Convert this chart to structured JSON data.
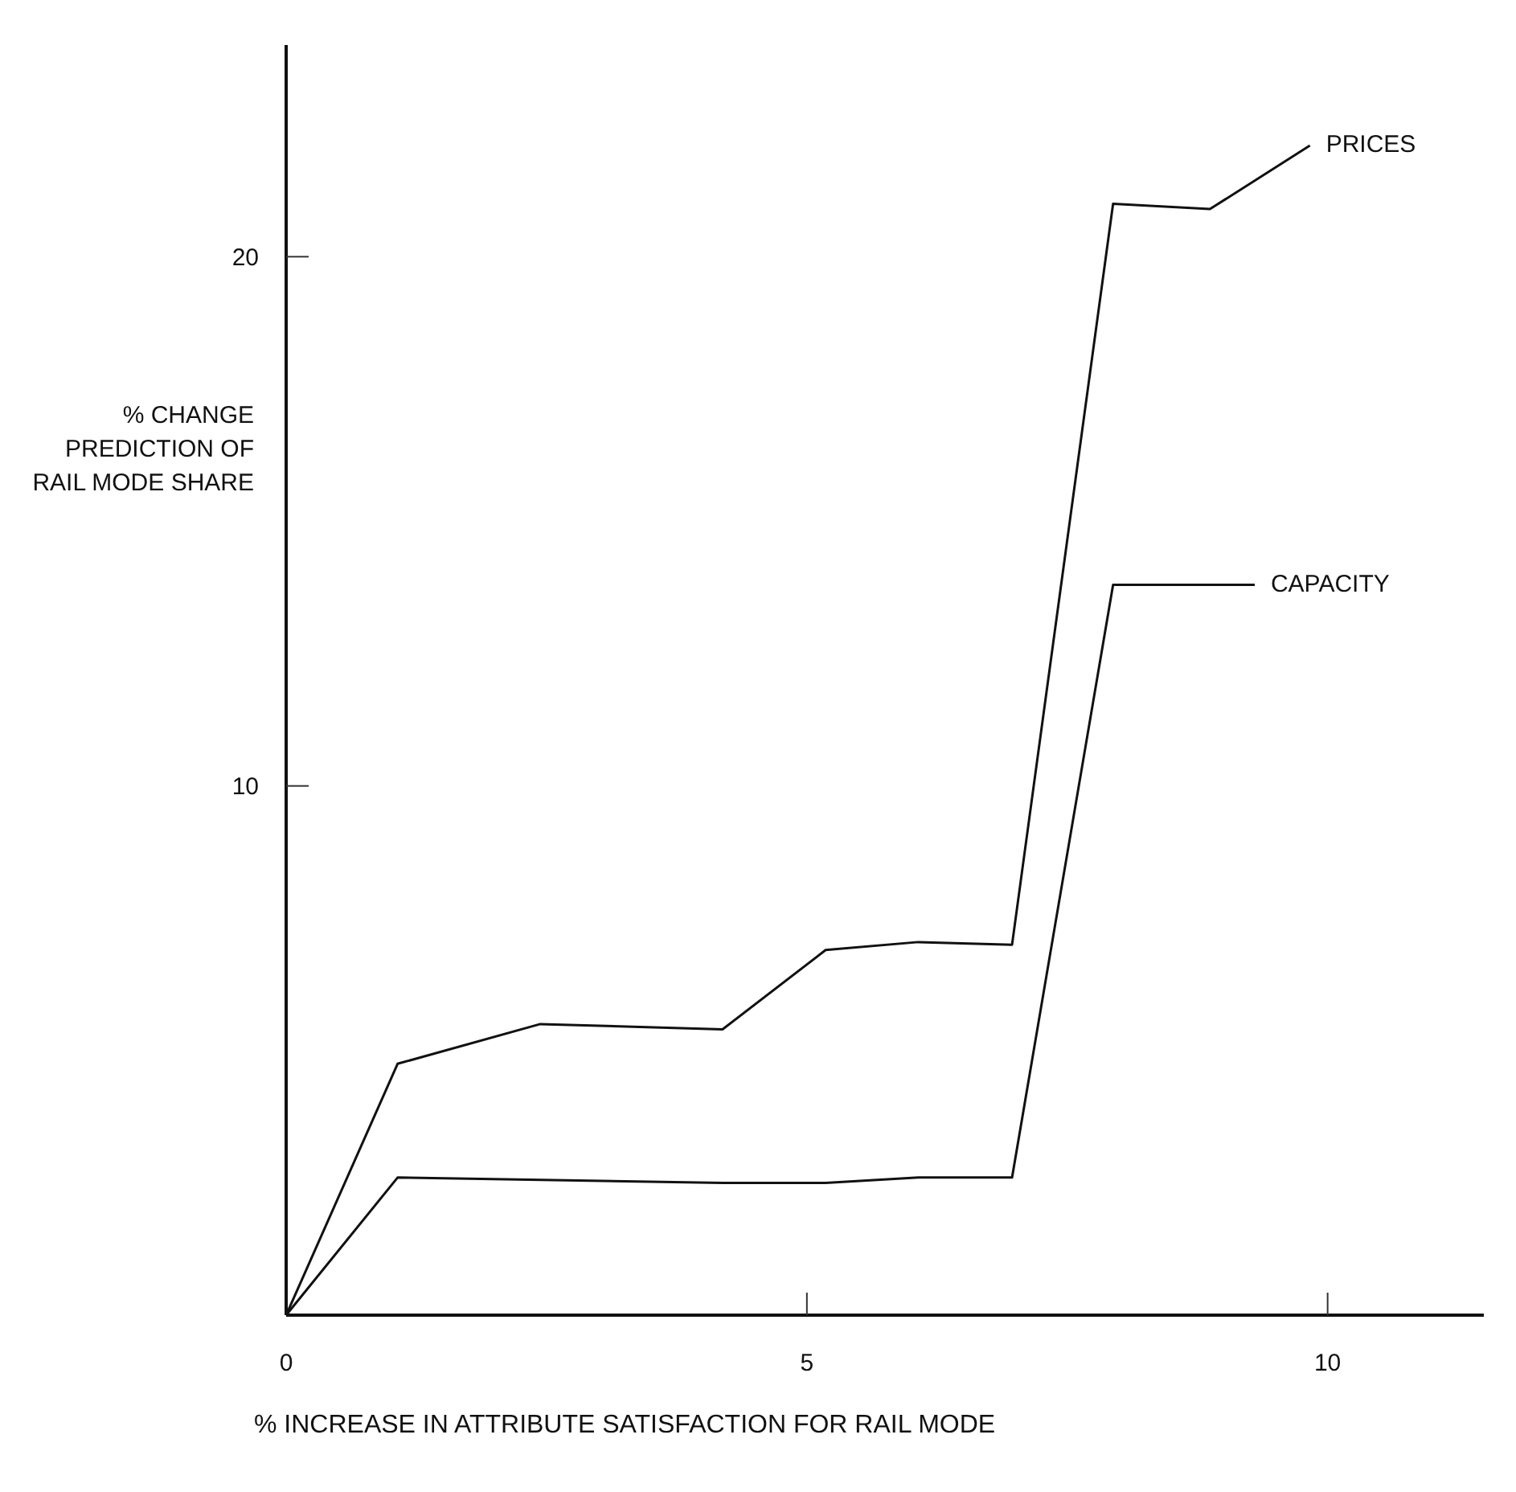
{
  "chart_data": {
    "type": "line",
    "xlabel": "% INCREASE IN ATTRIBUTE SATISFACTION FOR RAIL MODE",
    "ylabel": "% CHANGE PREDICTION OF RAIL MODE SHARE",
    "xlim": [
      0,
      11.5
    ],
    "xticks": [
      0,
      5,
      10
    ],
    "ylim": [
      0,
      24
    ],
    "yticks": [
      10,
      20
    ],
    "grid": false,
    "legend": false,
    "marker": "none",
    "line_style": "solid",
    "series": [
      {
        "name": "PRICES",
        "color": "#111111",
        "x": [
          0,
          1.07,
          2.44,
          4.19,
          5.18,
          6.07,
          6.97,
          7.94,
          8.87,
          9.83
        ],
        "values": [
          0,
          4.75,
          5.5,
          5.4,
          6.9,
          7.05,
          7.0,
          21.0,
          20.9,
          22.1
        ]
      },
      {
        "name": "CAPACITY",
        "color": "#111111",
        "x": [
          0,
          1.07,
          4.19,
          5.18,
          6.07,
          6.97,
          7.94,
          9.3
        ],
        "values": [
          0,
          2.6,
          2.5,
          2.5,
          2.6,
          2.6,
          13.8,
          13.8
        ]
      }
    ]
  }
}
